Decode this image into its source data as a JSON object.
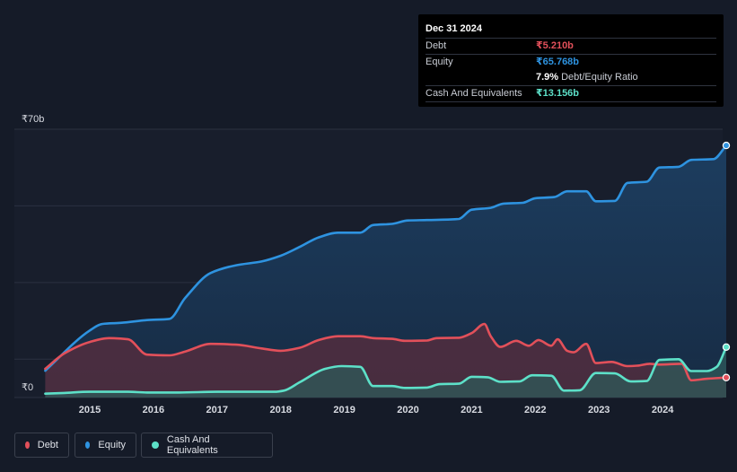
{
  "tooltip": {
    "date": "Dec 31 2024",
    "debt_label": "Debt",
    "debt_value": "₹5.210b",
    "equity_label": "Equity",
    "equity_value": "₹65.768b",
    "ratio_value": "7.9%",
    "ratio_label": "Debt/Equity Ratio",
    "cash_label": "Cash And Equivalents",
    "cash_value": "₹13.156b"
  },
  "legend": {
    "debt": "Debt",
    "equity": "Equity",
    "cash": "Cash And Equivalents"
  },
  "colors": {
    "debt": "#e2505a",
    "equity": "#2e93e0",
    "cash": "#5de0c8",
    "background": "#151b28"
  },
  "chart_data": {
    "type": "area",
    "title": "",
    "ylim": [
      0,
      70
    ],
    "y_tick_labels": [
      {
        "value": 70,
        "label": "₹70b"
      },
      {
        "value": 0,
        "label": "₹0"
      }
    ],
    "x_ticks": [
      2015,
      2016,
      2017,
      2018,
      2019,
      2020,
      2021,
      2022,
      2023,
      2024
    ],
    "xlim": [
      2014.3,
      2025.0
    ],
    "series": [
      {
        "name": "Equity",
        "key": "equity",
        "points": [
          [
            2014.3,
            7
          ],
          [
            2015.0,
            17.5
          ],
          [
            2015.2,
            19.2
          ],
          [
            2015.5,
            19.5
          ],
          [
            2015.9,
            20.2
          ],
          [
            2016.25,
            20.5
          ],
          [
            2016.5,
            26
          ],
          [
            2016.9,
            32.5
          ],
          [
            2017.3,
            34.5
          ],
          [
            2017.7,
            35.5
          ],
          [
            2018.0,
            37
          ],
          [
            2018.3,
            39.3
          ],
          [
            2018.6,
            41.8
          ],
          [
            2018.9,
            43
          ],
          [
            2019.25,
            43
          ],
          [
            2019.45,
            45
          ],
          [
            2019.75,
            45.3
          ],
          [
            2020.0,
            46.2
          ],
          [
            2020.3,
            46.3
          ],
          [
            2020.7,
            46.5
          ],
          [
            2020.8,
            46.6
          ],
          [
            2021.0,
            49
          ],
          [
            2021.3,
            49.5
          ],
          [
            2021.5,
            50.6
          ],
          [
            2021.8,
            50.8
          ],
          [
            2022.0,
            52
          ],
          [
            2022.3,
            52.3
          ],
          [
            2022.5,
            53.8
          ],
          [
            2022.8,
            53.8
          ],
          [
            2022.95,
            51.2
          ],
          [
            2023.25,
            51.3
          ],
          [
            2023.45,
            56
          ],
          [
            2023.75,
            56.3
          ],
          [
            2023.95,
            60
          ],
          [
            2024.25,
            60.2
          ],
          [
            2024.45,
            62
          ],
          [
            2024.8,
            62.2
          ],
          [
            2025.0,
            65.768
          ]
        ]
      },
      {
        "name": "Debt",
        "key": "debt",
        "points": [
          [
            2014.3,
            7.5
          ],
          [
            2014.6,
            11.5
          ],
          [
            2015.0,
            14.5
          ],
          [
            2015.3,
            15.5
          ],
          [
            2015.6,
            15.2
          ],
          [
            2015.9,
            11.2
          ],
          [
            2016.25,
            11
          ],
          [
            2016.5,
            12
          ],
          [
            2016.9,
            14
          ],
          [
            2017.3,
            13.8
          ],
          [
            2017.7,
            12.8
          ],
          [
            2018.0,
            12.2
          ],
          [
            2018.3,
            13
          ],
          [
            2018.6,
            15
          ],
          [
            2018.9,
            16
          ],
          [
            2019.25,
            16
          ],
          [
            2019.45,
            15.5
          ],
          [
            2019.75,
            15.3
          ],
          [
            2019.95,
            14.8
          ],
          [
            2020.3,
            14.9
          ],
          [
            2020.45,
            15.5
          ],
          [
            2020.8,
            15.6
          ],
          [
            2021.0,
            16.8
          ],
          [
            2021.2,
            19.2
          ],
          [
            2021.3,
            16
          ],
          [
            2021.45,
            13.2
          ],
          [
            2021.7,
            14.8
          ],
          [
            2021.9,
            13.5
          ],
          [
            2022.05,
            15
          ],
          [
            2022.25,
            13.5
          ],
          [
            2022.35,
            15.2
          ],
          [
            2022.5,
            12.2
          ],
          [
            2022.6,
            11.8
          ],
          [
            2022.8,
            14
          ],
          [
            2022.95,
            9
          ],
          [
            2023.2,
            9.3
          ],
          [
            2023.45,
            8.2
          ],
          [
            2023.6,
            8.3
          ],
          [
            2023.8,
            8.8
          ],
          [
            2023.95,
            8.6
          ],
          [
            2024.3,
            8.8
          ],
          [
            2024.45,
            4.5
          ],
          [
            2024.7,
            4.9
          ],
          [
            2025.0,
            5.21
          ]
        ]
      },
      {
        "name": "Cash And Equivalents",
        "key": "cash",
        "points": [
          [
            2014.3,
            1
          ],
          [
            2014.6,
            1.2
          ],
          [
            2015.0,
            1.5
          ],
          [
            2015.6,
            1.5
          ],
          [
            2015.9,
            1.3
          ],
          [
            2016.4,
            1.3
          ],
          [
            2017.0,
            1.5
          ],
          [
            2017.9,
            1.5
          ],
          [
            2018.05,
            1.8
          ],
          [
            2018.3,
            4
          ],
          [
            2018.7,
            7.5
          ],
          [
            2018.95,
            8.2
          ],
          [
            2019.25,
            8
          ],
          [
            2019.45,
            3
          ],
          [
            2019.75,
            3
          ],
          [
            2019.95,
            2.5
          ],
          [
            2020.3,
            2.6
          ],
          [
            2020.5,
            3.5
          ],
          [
            2020.8,
            3.6
          ],
          [
            2021.0,
            5.4
          ],
          [
            2021.25,
            5.3
          ],
          [
            2021.45,
            4.1
          ],
          [
            2021.75,
            4.2
          ],
          [
            2021.95,
            5.8
          ],
          [
            2022.25,
            5.7
          ],
          [
            2022.45,
            1.8
          ],
          [
            2022.7,
            1.9
          ],
          [
            2022.95,
            6.4
          ],
          [
            2023.25,
            6.3
          ],
          [
            2023.5,
            4.2
          ],
          [
            2023.75,
            4.3
          ],
          [
            2023.95,
            9.8
          ],
          [
            2024.25,
            10
          ],
          [
            2024.45,
            6.9
          ],
          [
            2024.7,
            6.9
          ],
          [
            2024.85,
            8
          ],
          [
            2025.0,
            13.156
          ]
        ]
      }
    ]
  }
}
